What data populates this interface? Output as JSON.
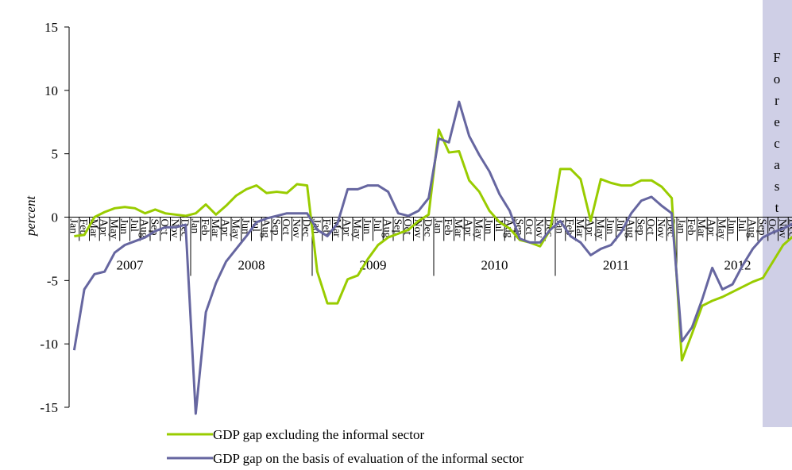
{
  "chart_data": {
    "type": "line",
    "y_label": "percent",
    "annotation": "Forecast",
    "years": [
      "2007",
      "2008",
      "2009",
      "2010",
      "2011",
      "2012"
    ],
    "categories": [
      "Jan",
      "Feb",
      "Mar",
      "Apr",
      "May",
      "Jun",
      "Jul",
      "Aug",
      "Sep",
      "Oct",
      "Nov",
      "Dec",
      "Jan",
      "Feb",
      "Mar",
      "Apr",
      "May",
      "Jun",
      "Jul",
      "Aug",
      "Sep",
      "Oct",
      "Nov",
      "Dec",
      "Jan",
      "Feb",
      "Mar",
      "Apr",
      "May",
      "Jun",
      "Jul",
      "Aug",
      "Sep",
      "Oct",
      "Nov",
      "Dec",
      "Jan",
      "Feb",
      "Mar",
      "Apr",
      "May",
      "Jun",
      "Jul",
      "Aug",
      "Sep",
      "Oct",
      "Nov",
      "Dec",
      "Jan",
      "Feb",
      "Mar",
      "Apr",
      "May",
      "Jun",
      "Jul",
      "Aug",
      "Sep",
      "Oct",
      "Nov",
      "Dec",
      "Jan",
      "Feb",
      "Mar",
      "Apr",
      "May",
      "Jun",
      "Jul",
      "Aug",
      "Sep",
      "Oct",
      "Nov",
      "Dec"
    ],
    "series": [
      {
        "name": "GDP gap excluding the informal sector",
        "color": "#99cc00",
        "values": [
          -1.5,
          -1.4,
          0,
          0.4,
          0.7,
          0.8,
          0.7,
          0.3,
          0.6,
          0.3,
          0.2,
          0.1,
          0.3,
          1.0,
          0.2,
          0.9,
          1.7,
          2.2,
          2.5,
          1.9,
          2.0,
          1.9,
          2.6,
          2.5,
          -4.3,
          -6.8,
          -6.8,
          -4.9,
          -4.6,
          -3.3,
          -2.2,
          -1.6,
          -1.3,
          -1.0,
          -0.3,
          0.2,
          6.9,
          5.1,
          5.2,
          2.9,
          2.0,
          0.5,
          -0.4,
          -0.9,
          -1.8,
          -2.0,
          -2.3,
          -1.0,
          3.8,
          3.8,
          3.0,
          -0.3,
          3.0,
          2.7,
          2.5,
          2.5,
          2.9,
          2.9,
          2.4,
          1.5,
          -11.3,
          -9.2,
          -7.0,
          -6.6,
          -6.3,
          -5.9,
          -5.5,
          -5.1,
          -4.8,
          -3.5,
          -2.2,
          -1.5
        ]
      },
      {
        "name": "GDP gap on the basis of evaluation of the informal sector",
        "color": "#6666a0",
        "values": [
          -10.5,
          -5.7,
          -4.5,
          -4.3,
          -2.8,
          -2.2,
          -1.9,
          -1.6,
          -1.1,
          -0.8,
          -0.8,
          -0.6,
          -15.5,
          -7.5,
          -5.2,
          -3.5,
          -2.5,
          -1.5,
          -0.4,
          -0.1,
          0.1,
          0.3,
          0.3,
          0.3,
          -1.0,
          -1.5,
          -0.5,
          2.2,
          2.2,
          2.5,
          2.5,
          2.0,
          0.3,
          0.1,
          0.5,
          1.5,
          6.2,
          5.9,
          9.1,
          6.4,
          4.9,
          3.6,
          1.8,
          0.5,
          -1.7,
          -2.0,
          -2.0,
          -1.0,
          -0.3,
          -1.5,
          -2.0,
          -3.0,
          -2.5,
          -2.2,
          -1.2,
          0.3,
          1.3,
          1.6,
          0.9,
          0.3,
          -9.8,
          -8.7,
          -6.5,
          -4.0,
          -5.7,
          -5.3,
          -3.8,
          -2.5,
          -1.6,
          -1.2,
          -0.9,
          -0.5
        ]
      }
    ],
    "ylim": [
      -15,
      15
    ],
    "yticks": [
      -15,
      -10,
      -5,
      0,
      5,
      10,
      15
    ],
    "band_color": "#cfcfe6"
  }
}
